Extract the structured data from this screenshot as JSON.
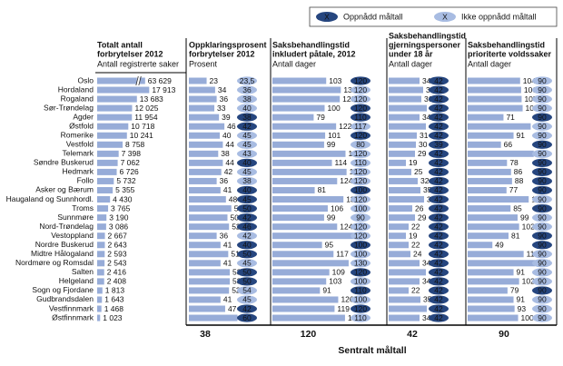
{
  "chart_data": {
    "type": "bar",
    "categories": [
      "Oslo",
      "Hordaland",
      "Rogaland",
      "Sør-Trøndelag",
      "Agder",
      "Østfold",
      "Romerike",
      "Vestfold",
      "Telemark",
      "Søndre Buskerud",
      "Hedmark",
      "Follo",
      "Asker og Bærum",
      "Haugaland og Sunnhordl.",
      "Troms",
      "Sunnmøre",
      "Nord-Trøndelag",
      "Vestoppland",
      "Nordre Buskerud",
      "Midtre Hålogaland",
      "Nordmøre og Romsdal",
      "Salten",
      "Helgeland",
      "Sogn og Fjordane",
      "Gudbrandsdalen",
      "Vestfinnmark",
      "Østfinnmark"
    ],
    "legend": [
      {
        "symbol": "X",
        "label": "Oppnådd måltall",
        "color": "#26467f"
      },
      {
        "symbol": "X",
        "label": "Ikke oppnådd måltall",
        "color": "#a8bce2"
      }
    ],
    "footer_label": "Sentralt måltall",
    "bar_color": "#97acd8",
    "panels": [
      {
        "title": [
          "Totalt antall",
          "forbrytelser 2012"
        ],
        "subtitle": "Antall registrerte saker",
        "xlim": [
          0,
          25000
        ],
        "axis_break": true,
        "values": [
          63629,
          17913,
          13683,
          12025,
          11954,
          10718,
          10241,
          8758,
          7398,
          7062,
          6726,
          5732,
          5355,
          4430,
          3765,
          3190,
          3086,
          2667,
          2643,
          2593,
          2543,
          2416,
          2408,
          1813,
          1643,
          1468,
          1023
        ],
        "value_labels": [
          "63 629",
          "17 913",
          "13 683",
          "12 025",
          "11 954",
          "10 718",
          "10 241",
          "8 758",
          "7 398",
          "7 062",
          "6 726",
          "5 732",
          "5 355",
          "4 430",
          "3 765",
          "3 190",
          "3 086",
          "2 667",
          "2 643",
          "2 593",
          "2 543",
          "2 416",
          "2 408",
          "1 813",
          "1 643",
          "1 468",
          "1 023"
        ]
      },
      {
        "title": [
          "Oppklaringsprosent",
          "forbrytelser 2012"
        ],
        "subtitle": "Prosent",
        "xlim": [
          0,
          100
        ],
        "target_value": 38,
        "values": [
          23,
          34,
          36,
          33,
          39,
          46,
          40,
          44,
          38,
          44,
          42,
          36,
          41,
          48,
          55,
          50,
          52,
          36,
          41,
          51,
          41,
          53,
          53,
          52,
          41,
          47,
          63
        ],
        "targets": [
          23.5,
          36,
          38,
          40,
          38,
          42,
          45,
          45,
          43,
          40,
          45,
          38,
          40,
          45,
          50,
          42,
          46,
          42,
          40,
          50,
          45,
          50,
          50,
          54,
          45,
          42,
          60
        ],
        "target_labels": [
          "23,5",
          "36",
          "38",
          "40",
          "38",
          "42",
          "45",
          "45",
          "43",
          "40",
          "45",
          "38",
          "40",
          "45",
          "50",
          "42",
          "46",
          "42",
          "40",
          "50",
          "45",
          "50",
          "50",
          "54",
          "45",
          "42",
          "60"
        ],
        "target_colors": [
          "#a8bce2",
          "#a8bce2",
          "#a8bce2",
          "#a8bce2",
          "#26467f",
          "#26467f",
          "#a8bce2",
          "#a8bce2",
          "#a8bce2",
          "#26467f",
          "#a8bce2",
          "#a8bce2",
          "#26467f",
          "#26467f",
          "#26467f",
          "#26467f",
          "#26467f",
          "#a8bce2",
          "#26467f",
          "#26467f",
          "#a8bce2",
          "#26467f",
          "#26467f",
          "#a8bce2",
          "#a8bce2",
          "#26467f",
          "#26467f"
        ]
      },
      {
        "title": [
          "Saksbehandlingstid",
          "inkludert påtale, 2012"
        ],
        "subtitle": "Antall dager",
        "xlim": [
          0,
          200
        ],
        "target_value": 120,
        "values": [
          103,
          131,
          129,
          100,
          79,
          122,
          101,
          99,
          140,
          114,
          142,
          124,
          81,
          136,
          106,
          99,
          124,
          156,
          95,
          117,
          146,
          109,
          103,
          91,
          126,
          119,
          139
        ],
        "targets": [
          120,
          120,
          120,
          120,
          110,
          117,
          120,
          80,
          120,
          110,
          120,
          120,
          100,
          120,
          100,
          90,
          120,
          120,
          100,
          100,
          130,
          120,
          100,
          110,
          100,
          120,
          110
        ],
        "target_colors": [
          "#26467f",
          "#a8bce2",
          "#a8bce2",
          "#26467f",
          "#26467f",
          "#a8bce2",
          "#26467f",
          "#a8bce2",
          "#a8bce2",
          "#a8bce2",
          "#a8bce2",
          "#a8bce2",
          "#26467f",
          "#a8bce2",
          "#a8bce2",
          "#a8bce2",
          "#a8bce2",
          "#a8bce2",
          "#26467f",
          "#a8bce2",
          "#a8bce2",
          "#26467f",
          "#a8bce2",
          "#26467f",
          "#a8bce2",
          "#26467f",
          "#a8bce2"
        ]
      },
      {
        "title": [
          "Saksbehandlingstid",
          "gjerningspersoner",
          "under 18 år"
        ],
        "subtitle": "Antall dager",
        "xlim": [
          0,
          80
        ],
        "target_value": 42,
        "values": [
          34,
          38,
          36,
          42,
          34,
          41,
          31,
          30,
          29,
          19,
          25,
          32,
          35,
          39,
          26,
          29,
          22,
          19,
          22,
          24,
          34,
          41,
          34,
          22,
          35,
          42,
          34
        ],
        "targets": [
          42,
          42,
          42,
          42,
          42,
          42,
          42,
          39,
          42,
          42,
          42,
          42,
          42,
          42,
          42,
          42,
          42,
          42,
          42,
          42,
          42,
          42,
          42,
          42,
          42,
          42,
          42
        ],
        "target_colors": [
          "#26467f",
          "#26467f",
          "#26467f",
          "#26467f",
          "#26467f",
          "#26467f",
          "#26467f",
          "#26467f",
          "#26467f",
          "#26467f",
          "#26467f",
          "#26467f",
          "#26467f",
          "#26467f",
          "#26467f",
          "#26467f",
          "#26467f",
          "#26467f",
          "#26467f",
          "#26467f",
          "#26467f",
          "#26467f",
          "#26467f",
          "#26467f",
          "#26467f",
          "#26467f",
          "#26467f"
        ]
      },
      {
        "title": [
          "Saksbehandlingstid",
          "prioriterte voldssaker"
        ],
        "subtitle": "Antall dager",
        "xlim": [
          0,
          180
        ],
        "target_value": 90,
        "values": [
          104,
          106,
          107,
          109,
          71,
          125,
          91,
          66,
          131,
          78,
          86,
          88,
          77,
          121,
          85,
          99,
          102,
          81,
          49,
          111,
          134,
          91,
          102,
          79,
          91,
          93,
          100
        ],
        "targets": [
          90,
          90,
          90,
          90,
          90,
          90,
          90,
          90,
          90,
          90,
          90,
          90,
          90,
          90,
          90,
          90,
          90,
          90,
          90,
          90,
          90,
          90,
          90,
          90,
          90,
          90,
          90
        ],
        "target_colors": [
          "#a8bce2",
          "#a8bce2",
          "#a8bce2",
          "#a8bce2",
          "#26467f",
          "#a8bce2",
          "#a8bce2",
          "#26467f",
          "#a8bce2",
          "#26467f",
          "#26467f",
          "#26467f",
          "#26467f",
          "#a8bce2",
          "#26467f",
          "#a8bce2",
          "#a8bce2",
          "#26467f",
          "#26467f",
          "#a8bce2",
          "#a8bce2",
          "#a8bce2",
          "#a8bce2",
          "#26467f",
          "#a8bce2",
          "#a8bce2",
          "#a8bce2"
        ]
      }
    ]
  }
}
